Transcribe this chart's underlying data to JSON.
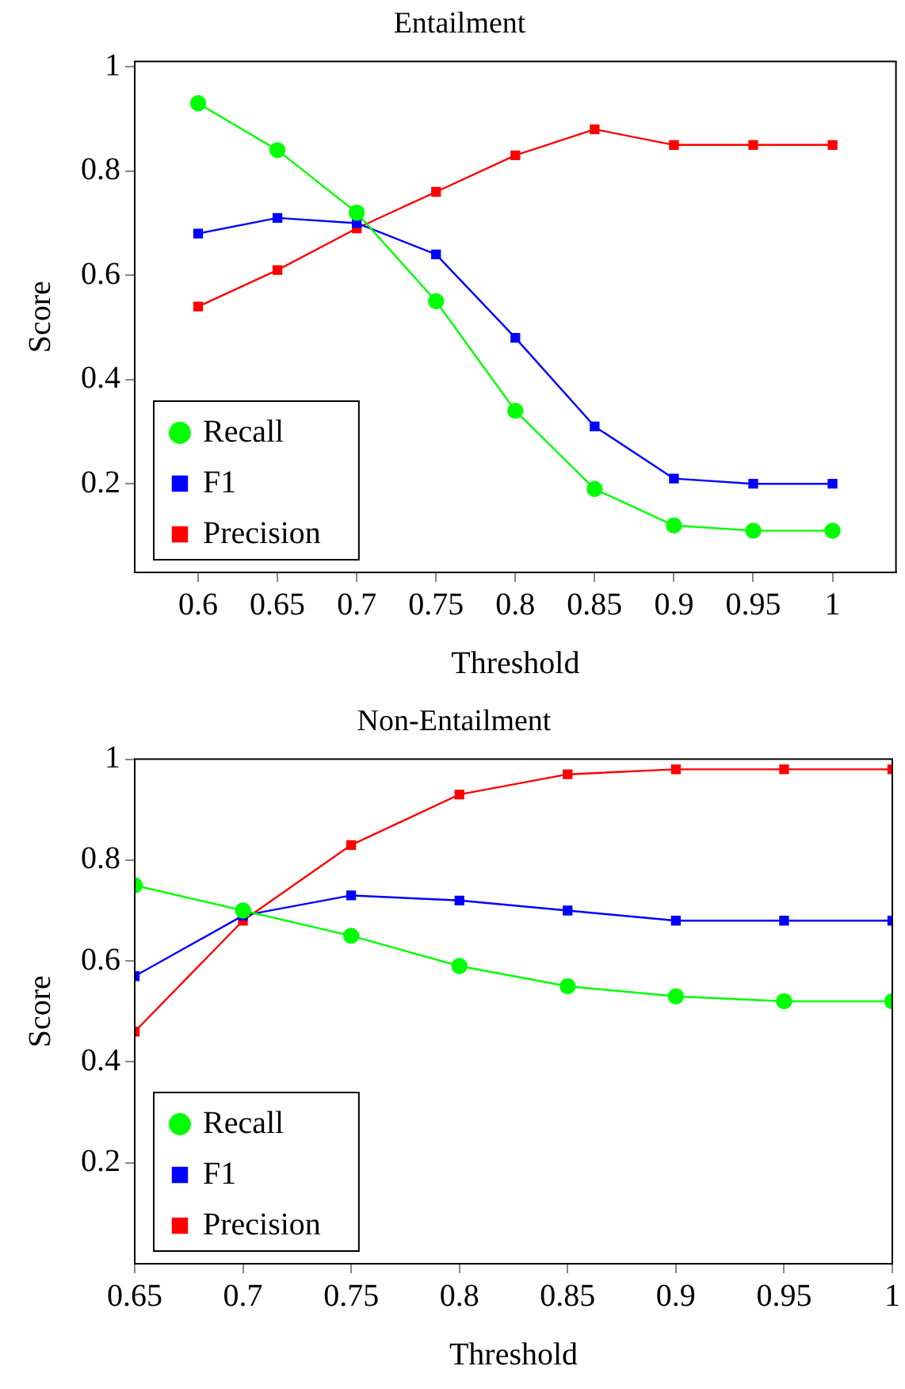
{
  "chart_data": [
    {
      "type": "line",
      "title": "Entailment",
      "xlabel": "Threshold",
      "ylabel": "Score",
      "x": [
        0.6,
        0.65,
        0.7,
        0.75,
        0.8,
        0.85,
        0.9,
        0.95,
        1
      ],
      "series": [
        {
          "name": "Recall",
          "color": "#00ff00",
          "marker": "circle",
          "values": [
            0.93,
            0.84,
            0.72,
            0.55,
            0.34,
            0.19,
            0.12,
            0.11,
            0.11
          ]
        },
        {
          "name": "F1",
          "color": "#0000ff",
          "marker": "square",
          "values": [
            0.68,
            0.71,
            0.7,
            0.64,
            0.48,
            0.31,
            0.21,
            0.2,
            0.2
          ]
        },
        {
          "name": "Precision",
          "color": "#ff0000",
          "marker": "square",
          "values": [
            0.54,
            0.61,
            0.69,
            0.76,
            0.83,
            0.88,
            0.85,
            0.85,
            0.85
          ]
        }
      ],
      "xlim": [
        0.56,
        1.04
      ],
      "xticks": [
        0.6,
        0.65,
        0.7,
        0.75,
        0.8,
        0.85,
        0.9,
        0.95,
        1
      ],
      "ylim": [
        0.03,
        1.01
      ],
      "yticks": [
        0.2,
        0.4,
        0.6,
        0.8,
        1
      ],
      "legend": "bottom left",
      "line_style": "solid"
    },
    {
      "type": "line",
      "title": "Non-Entailment",
      "xlabel": "Threshold",
      "ylabel": "Score",
      "x": [
        0.65,
        0.7,
        0.75,
        0.8,
        0.85,
        0.9,
        0.95,
        1
      ],
      "series": [
        {
          "name": "Recall",
          "color": "#00ff00",
          "marker": "circle",
          "values": [
            0.75,
            0.7,
            0.65,
            0.59,
            0.55,
            0.53,
            0.52,
            0.52
          ]
        },
        {
          "name": "F1",
          "color": "#0000ff",
          "marker": "square",
          "values": [
            0.57,
            0.69,
            0.73,
            0.72,
            0.7,
            0.68,
            0.68,
            0.68
          ]
        },
        {
          "name": "Precision",
          "color": "#ff0000",
          "marker": "square",
          "values": [
            0.46,
            0.68,
            0.83,
            0.93,
            0.97,
            0.98,
            0.98,
            0.98
          ]
        }
      ],
      "xlim": [
        0.65,
        1
      ],
      "xticks": [
        0.65,
        0.7,
        0.75,
        0.8,
        0.85,
        0.9,
        0.95,
        1
      ],
      "ylim": [
        0,
        1
      ],
      "yticks": [
        0.2,
        0.4,
        0.6,
        0.8,
        1
      ],
      "legend": "bottom left",
      "line_style": "solid"
    }
  ]
}
